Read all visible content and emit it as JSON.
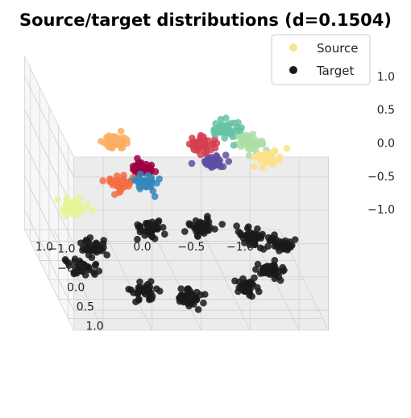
{
  "chart_data": {
    "type": "scatter",
    "projection": "3d",
    "title": "Source/target distributions (d=0.1504)",
    "xlim": [
      -1.3,
      1.3
    ],
    "ylim": [
      -1.3,
      1.3
    ],
    "zlim": [
      -1.3,
      1.3
    ],
    "x_ticks": [
      "−1.0",
      "−0.5",
      "0.0",
      "0.5",
      "1.0"
    ],
    "y_ticks": [
      "−1.0",
      "−0.5",
      "0.0",
      "0.5",
      "1.0"
    ],
    "z_ticks": [
      "−1.0",
      "−0.5",
      "0.0",
      "0.5",
      "1.0"
    ],
    "grid": true,
    "legend": {
      "placement": "top-right",
      "entries": [
        {
          "label": "Source",
          "color": "#f5e68c"
        },
        {
          "label": "Target",
          "color": "#1a1a1a"
        }
      ]
    },
    "series": [
      {
        "name": "Source",
        "clusters": [
          {
            "center": [
              -0.22,
              0.27,
              0.88
            ],
            "color": "#d53e4f"
          },
          {
            "center": [
              0.65,
              0.11,
              0.84
            ],
            "color": "#fdae61"
          },
          {
            "center": [
              0.35,
              -0.03,
              0.36
            ],
            "color": "#9e0142"
          },
          {
            "center": [
              -0.72,
              0.1,
              0.82
            ],
            "color": "#abdda4"
          },
          {
            "center": [
              -0.94,
              -0.15,
              0.45
            ],
            "color": "#fee08b"
          },
          {
            "center": [
              -0.66,
              -0.76,
              0.5
            ],
            "color": "#66c2a5"
          },
          {
            "center": [
              -0.46,
              -0.36,
              0.25
            ],
            "color": "#5e4fa2"
          },
          {
            "center": [
              0.28,
              -0.1,
              0.1
            ],
            "color": "#3288bd"
          },
          {
            "center": [
              0.55,
              -0.15,
              0.05
            ],
            "color": "#f46d43"
          },
          {
            "center": [
              0.98,
              -0.22,
              -0.35
            ],
            "color": "#e6f598"
          }
        ]
      },
      {
        "name": "Target",
        "clusters": [
          {
            "center": [
              -0.9,
              0.27,
              -1.0
            ],
            "color": "#1a1a1a"
          },
          {
            "center": [
              -0.58,
              0.71,
              -1.0
            ],
            "color": "#1a1a1a"
          },
          {
            "center": [
              0.06,
              1.0,
              -1.0
            ],
            "color": "#1a1a1a"
          },
          {
            "center": [
              0.49,
              0.85,
              -1.0
            ],
            "color": "#1a1a1a"
          },
          {
            "center": [
              1.0,
              0.18,
              -1.0
            ],
            "color": "#1a1a1a"
          },
          {
            "center": [
              0.78,
              -0.3,
              -1.0
            ],
            "color": "#1a1a1a"
          },
          {
            "center": [
              0.11,
              -0.79,
              -1.0
            ],
            "color": "#1a1a1a"
          },
          {
            "center": [
              -0.41,
              -0.82,
              -1.0
            ],
            "color": "#1a1a1a"
          },
          {
            "center": [
              -0.86,
              -0.6,
              -1.0
            ],
            "color": "#1a1a1a"
          },
          {
            "center": [
              -1.16,
              -0.44,
              -1.0
            ],
            "color": "#1a1a1a"
          }
        ]
      }
    ]
  }
}
